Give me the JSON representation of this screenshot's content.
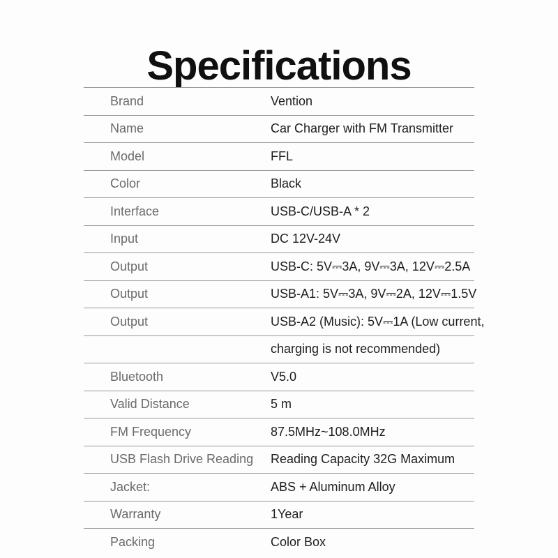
{
  "title": "Specifications",
  "colors": {
    "background": "#fdfdfd",
    "title_text": "#101010",
    "label_text": "#6a6a6a",
    "value_text": "#1e1e1e",
    "rule": "#979797"
  },
  "table": {
    "rows": [
      {
        "label": "Brand",
        "value": "Vention"
      },
      {
        "label": "Name",
        "value": "Car Charger with FM Transmitter"
      },
      {
        "label": "Model",
        "value": "FFL"
      },
      {
        "label": "Color",
        "value": "Black"
      },
      {
        "label": "Interface",
        "value": "USB-C/USB-A * 2"
      },
      {
        "label": "Input",
        "value": "DC 12V-24V"
      },
      {
        "label": "Output",
        "value": "USB-C: 5V⎓3A, 9V⎓3A, 12V⎓2.5A"
      },
      {
        "label": "Output",
        "value": "USB-A1: 5V⎓3A, 9V⎓2A, 12V⎓1.5V"
      },
      {
        "label": "Output",
        "value": "USB-A2 (Music): 5V⎓1A (Low current,"
      },
      {
        "label": "",
        "value": "charging is not recommended)"
      },
      {
        "label": "Bluetooth",
        "value": "V5.0"
      },
      {
        "label": "Valid Distance",
        "value": "5 m"
      },
      {
        "label": "FM Frequency",
        "value": "87.5MHz~108.0MHz"
      },
      {
        "label": "USB Flash Drive Reading",
        "value": "Reading Capacity 32G Maximum"
      },
      {
        "label": "Jacket:",
        "value": "ABS + Aluminum Alloy"
      },
      {
        "label": "Warranty",
        "value": "1Year"
      },
      {
        "label": "Packing",
        "value": "Color Box"
      }
    ]
  }
}
